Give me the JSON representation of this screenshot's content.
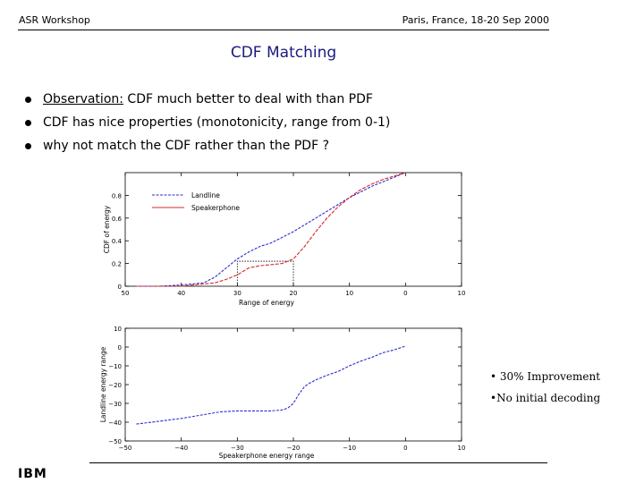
{
  "header": {
    "left": "ASR Workshop",
    "right": "Paris, France, 18-20 Sep 2000"
  },
  "title": "CDF Matching",
  "bullets": [
    {
      "lead": "Observation:",
      "text": " CDF much better to deal with than PDF"
    },
    {
      "lead": "",
      "text": "CDF has nice properties (monotonicity, range from 0-1)"
    },
    {
      "lead": "",
      "text": "why not match the CDF rather than the PDF ?"
    }
  ],
  "notes": [
    "• 30% Improvement",
    "•No initial decoding"
  ],
  "footer_logo": "IBM",
  "colors": {
    "title": "#1a1a80",
    "series_blue": "#2b2bd6",
    "series_red": "#d62b2b"
  },
  "chart_data": [
    {
      "type": "line",
      "xlabel": "Range of energy",
      "ylabel": "CDF of energy",
      "xlim": [
        50,
        -10
      ],
      "ylim": [
        0,
        1.0
      ],
      "xticks": [
        "50",
        "40",
        "30",
        "20",
        "10",
        "0",
        "10"
      ],
      "yticks": [
        "0",
        "0.2",
        "0.4",
        "0.6",
        "0.8"
      ],
      "legend": "top-left",
      "series": [
        {
          "name": "Landline",
          "x": [
            48,
            44,
            40,
            36,
            34,
            32,
            30,
            28,
            26,
            24,
            22,
            20,
            18,
            16,
            14,
            12,
            10,
            8,
            6,
            4,
            2,
            0
          ],
          "y": [
            0.0,
            0.0,
            0.01,
            0.03,
            0.08,
            0.16,
            0.24,
            0.3,
            0.35,
            0.38,
            0.43,
            0.48,
            0.54,
            0.6,
            0.66,
            0.72,
            0.78,
            0.83,
            0.88,
            0.92,
            0.96,
            1.0
          ]
        },
        {
          "name": "Speakerphone",
          "x": [
            48,
            44,
            40,
            38,
            36,
            34,
            32,
            30,
            28,
            26,
            24,
            22,
            20,
            18,
            16,
            14,
            12,
            10,
            8,
            6,
            4,
            2,
            0
          ],
          "y": [
            0.0,
            0.0,
            0.0,
            0.01,
            0.02,
            0.03,
            0.06,
            0.1,
            0.16,
            0.18,
            0.19,
            0.2,
            0.24,
            0.35,
            0.48,
            0.6,
            0.7,
            0.78,
            0.85,
            0.9,
            0.94,
            0.97,
            1.0
          ]
        }
      ]
    },
    {
      "type": "line",
      "xlabel": "Speakerphone energy range",
      "ylabel": "Landline energy range",
      "xlim": [
        -50,
        10
      ],
      "ylim": [
        -50,
        10
      ],
      "xticks": [
        "−50",
        "−40",
        "−30",
        "−20",
        "−10",
        "0",
        "10"
      ],
      "yticks": [
        "10",
        "0",
        "−10",
        "−20",
        "−30",
        "−40",
        "−50"
      ],
      "series": [
        {
          "x": [
            -48,
            -44,
            -40,
            -36,
            -33,
            -30,
            -27,
            -24,
            -22,
            -21,
            -20,
            -19,
            -18,
            -17,
            -16,
            -14,
            -12,
            -10,
            -8,
            -6,
            -4,
            -2,
            0
          ],
          "y": [
            -41,
            -39.5,
            -38,
            -36,
            -34.5,
            -34,
            -34,
            -34,
            -33.5,
            -32.5,
            -30,
            -25,
            -21,
            -19,
            -17.5,
            -15,
            -13,
            -10,
            -7.5,
            -5.5,
            -3,
            -1.5,
            0.5
          ]
        }
      ]
    }
  ]
}
